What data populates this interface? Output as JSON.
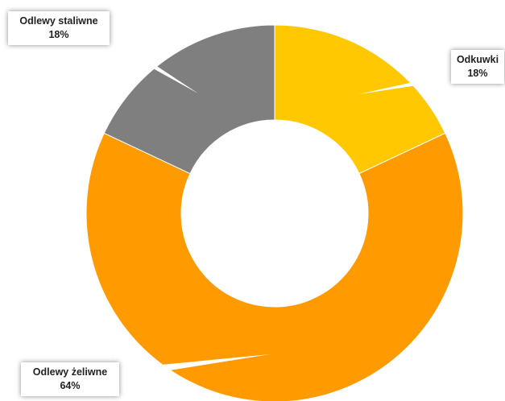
{
  "chart_data": {
    "type": "donut",
    "slices": [
      {
        "label": "Odkuwki",
        "value": 18,
        "value_label": "18%",
        "color": "#FFC800"
      },
      {
        "label": "Odlewy żeliwne",
        "value": 64,
        "value_label": "64%",
        "color": "#FF9A00"
      },
      {
        "label": "Odlewy staliwne",
        "value": 18,
        "value_label": "18%",
        "color": "#7F7F7F"
      }
    ],
    "start_angle_deg": 0,
    "direction": "clockwise",
    "legend": "none"
  }
}
